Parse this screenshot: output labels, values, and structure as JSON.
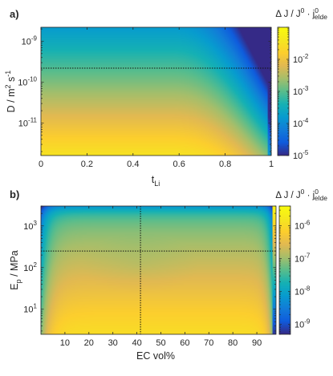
{
  "chart_data": [
    {
      "type": "heatmap",
      "panel_label": "a)",
      "colorbar_title": "Δ J  /  J⁰ · j⁰elde",
      "colorbar_title_parts": {
        "main": "Δ J  /  J",
        "sup1": "0",
        "mid": " · j",
        "sup2": "0",
        "sub": "elde"
      },
      "xlabel": "t",
      "xlabel_sub": "Li",
      "ylabel": "D  /  m² s⁻¹",
      "ylabel_parts": {
        "main": "D  /  m",
        "sup1": "2",
        "mid": " s",
        "sup2": "-1"
      },
      "x_scale": "linear",
      "y_scale": "log",
      "xlim": [
        0,
        1
      ],
      "ylim": [
        1.6e-12,
        2.2e-09
      ],
      "x_ticks": [
        0,
        0.2,
        0.4,
        0.6,
        0.8,
        1
      ],
      "x_tick_labels": [
        "0",
        "0.2",
        "0.4",
        "0.6",
        "0.8",
        "1"
      ],
      "y_ticks": [
        1e-11,
        1e-10,
        1e-09
      ],
      "y_tick_labels": [
        {
          "base": "10",
          "exp": "-11"
        },
        {
          "base": "10",
          "exp": "-10"
        },
        {
          "base": "10",
          "exp": "-9"
        }
      ],
      "color_scale": "log",
      "clim": [
        1e-05,
        0.1
      ],
      "colorbar_ticks": [
        1e-05,
        0.0001,
        0.001,
        0.01
      ],
      "colorbar_tick_labels": [
        {
          "base": "10",
          "exp": "-5"
        },
        {
          "base": "10",
          "exp": "-4"
        },
        {
          "base": "10",
          "exp": "-3"
        },
        {
          "base": "10",
          "exp": "-2"
        }
      ],
      "reference_lines": {
        "horizontal_y": 2.2e-10,
        "vertical_x": 1.0
      },
      "colormap": "parula"
    },
    {
      "type": "heatmap",
      "panel_label": "b)",
      "colorbar_title": "Δ J  /  J⁰ · j⁰elde",
      "colorbar_title_parts": {
        "main": "Δ J  /  J",
        "sup1": "0",
        "mid": " · j",
        "sup2": "0",
        "sub": "elde"
      },
      "xlabel": "EC vol%",
      "ylabel": "E",
      "ylabel_sub": "p",
      "ylabel_rest": "  /  MPa",
      "x_scale": "linear",
      "y_scale": "log",
      "xlim": [
        0,
        98
      ],
      "ylim": [
        2.5,
        3000
      ],
      "x_ticks": [
        10,
        20,
        30,
        40,
        50,
        60,
        70,
        80,
        90
      ],
      "x_tick_labels": [
        "10",
        "20",
        "30",
        "40",
        "50",
        "60",
        "70",
        "80",
        "90"
      ],
      "y_ticks": [
        10,
        100,
        1000
      ],
      "y_tick_labels": [
        {
          "base": "10",
          "exp": "1"
        },
        {
          "base": "10",
          "exp": "2"
        },
        {
          "base": "10",
          "exp": "3"
        }
      ],
      "color_scale": "log",
      "clim": [
        5e-10,
        4e-06
      ],
      "colorbar_ticks": [
        1e-09,
        1e-08,
        1e-07,
        1e-06
      ],
      "colorbar_tick_labels": [
        {
          "base": "10",
          "exp": "-9"
        },
        {
          "base": "10",
          "exp": "-8"
        },
        {
          "base": "10",
          "exp": "-7"
        },
        {
          "base": "10",
          "exp": "-6"
        }
      ],
      "reference_lines": {
        "horizontal_y": 250,
        "vertical_x": 41.5
      },
      "colormap": "parula"
    }
  ]
}
